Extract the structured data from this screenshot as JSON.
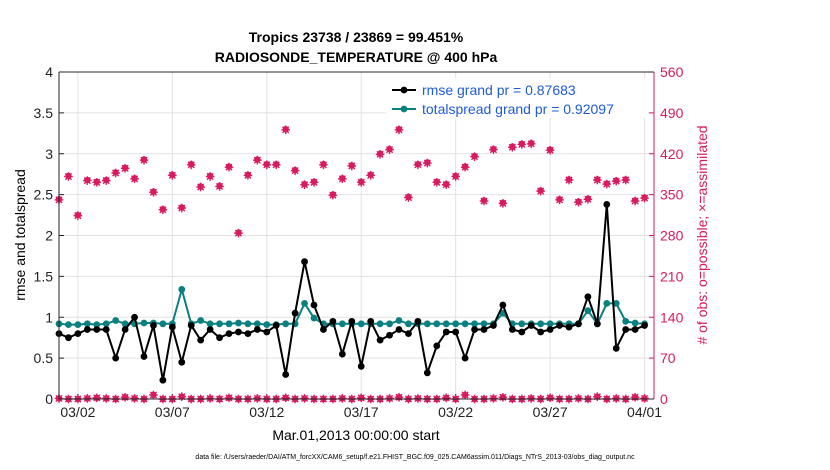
{
  "chart_data": {
    "type": "line",
    "title": "Tropics 23738 / 23869 = 99.451%",
    "subtitle": "RADIOSONDE_TEMPERATURE @ 400 hPa",
    "xlabel": "Mar.01,2013 00:00:00 start",
    "ylabel_left": "rmse and totalspread",
    "ylabel_right": "# of obs: o=possible; ×=assimilated",
    "footnote": "data file: /Users/raeder/DAI/ATM_forcXX/CAM6_setup/f.e21.FHIST_BGC.f09_025.CAM6assim.011/Diags_NTrS_2013-03/obs_diag_output.nc",
    "xlim": [
      0,
      31.5
    ],
    "ylim_left": [
      0,
      4
    ],
    "ylim_right": [
      0,
      560
    ],
    "x_tick_values": [
      1,
      6,
      11,
      16,
      21,
      26,
      31
    ],
    "x_tick_labels": [
      "03/02",
      "03/07",
      "03/12",
      "03/17",
      "03/22",
      "03/27",
      "04/01"
    ],
    "y_left_ticks": [
      "0",
      "0.5",
      "1",
      "1.5",
      "2",
      "2.5",
      "3",
      "3.5",
      "4"
    ],
    "y_right_ticks": [
      "0",
      "70",
      "140",
      "210",
      "280",
      "350",
      "420",
      "490",
      "560"
    ],
    "legend_location": "top-right",
    "colors": {
      "rmse": "#000000",
      "spread": "#0a8080",
      "obs": "#d81b60",
      "legend_text": "#1f5bd6",
      "axis": "#262626"
    },
    "series": [
      {
        "name": "rmse grand pr = 0.87683",
        "x": [
          0,
          0.5,
          1,
          1.5,
          2,
          2.5,
          3,
          3.5,
          4,
          4.5,
          5,
          5.5,
          6,
          6.5,
          7,
          7.5,
          8,
          8.5,
          9,
          9.5,
          10,
          10.5,
          11,
          11.5,
          12,
          12.5,
          13,
          13.5,
          14,
          14.5,
          15,
          15.5,
          16,
          16.5,
          17,
          17.5,
          18,
          18.5,
          19,
          19.5,
          20,
          20.5,
          21,
          21.5,
          22,
          22.5,
          23,
          23.5,
          24,
          24.5,
          25,
          25.5,
          26,
          26.5,
          27,
          27.5,
          28,
          28.5,
          29,
          29.5,
          30,
          30.5,
          31
        ],
        "values": [
          0.8,
          0.75,
          0.8,
          0.85,
          0.85,
          0.85,
          0.5,
          0.85,
          1.0,
          0.52,
          0.9,
          0.23,
          0.88,
          0.45,
          0.9,
          0.72,
          0.85,
          0.75,
          0.8,
          0.82,
          0.8,
          0.85,
          0.82,
          0.9,
          0.3,
          1.05,
          1.68,
          1.15,
          0.85,
          0.95,
          0.55,
          0.95,
          0.4,
          0.95,
          0.72,
          0.78,
          0.85,
          0.8,
          0.95,
          0.32,
          0.65,
          0.82,
          0.82,
          0.5,
          0.85,
          0.85,
          0.9,
          1.15,
          0.85,
          0.82,
          0.9,
          0.82,
          0.85,
          0.9,
          0.88,
          0.92,
          1.25,
          0.92,
          2.38,
          0.62,
          0.85,
          0.85,
          0.9
        ]
      },
      {
        "name": "totalspread grand pr = 0.92097",
        "x": [
          0,
          0.5,
          1,
          1.5,
          2,
          2.5,
          3,
          3.5,
          4,
          4.5,
          5,
          5.5,
          6,
          6.5,
          7,
          7.5,
          8,
          8.5,
          9,
          9.5,
          10,
          10.5,
          11,
          11.5,
          12,
          12.5,
          13,
          13.5,
          14,
          14.5,
          15,
          15.5,
          16,
          16.5,
          17,
          17.5,
          18,
          18.5,
          19,
          19.5,
          20,
          20.5,
          21,
          21.5,
          22,
          22.5,
          23,
          23.5,
          24,
          24.5,
          25,
          25.5,
          26,
          26.5,
          27,
          27.5,
          28,
          28.5,
          29,
          29.5,
          30,
          30.5,
          31
        ],
        "values": [
          0.92,
          0.91,
          0.91,
          0.92,
          0.91,
          0.92,
          0.96,
          0.92,
          0.92,
          0.93,
          0.93,
          0.92,
          0.92,
          1.34,
          0.92,
          0.96,
          0.92,
          0.92,
          0.92,
          0.93,
          0.92,
          0.92,
          0.91,
          0.91,
          0.92,
          0.92,
          1.17,
          0.99,
          0.92,
          0.92,
          0.92,
          0.92,
          0.92,
          0.92,
          0.92,
          0.92,
          0.96,
          0.92,
          0.92,
          0.92,
          0.92,
          0.92,
          0.92,
          0.92,
          0.92,
          0.92,
          0.92,
          1.05,
          0.92,
          0.92,
          0.92,
          0.92,
          0.92,
          0.92,
          0.92,
          0.92,
          1.08,
          0.92,
          1.17,
          1.17,
          0.95,
          0.93,
          0.92
        ]
      },
      {
        "name": "obs possible",
        "x": [
          0,
          0.5,
          1,
          1.5,
          2,
          2.5,
          3,
          3.5,
          4,
          4.5,
          5,
          5.5,
          6,
          6.5,
          7,
          7.5,
          8,
          8.5,
          9,
          9.5,
          10,
          10.5,
          11,
          11.5,
          12,
          12.5,
          13,
          13.5,
          14,
          14.5,
          15,
          15.5,
          16,
          16.5,
          17,
          17.5,
          18,
          18.5,
          19,
          19.5,
          20,
          20.5,
          21,
          21.5,
          22,
          22.5,
          23,
          23.5,
          24,
          24.5,
          25,
          25.5,
          26,
          26.5,
          27,
          27.5,
          28,
          28.5,
          29,
          29.5,
          30,
          30.5,
          31
        ],
        "values": [
          342,
          382,
          315,
          375,
          372,
          375,
          388,
          396,
          378,
          410,
          355,
          325,
          384,
          328,
          402,
          364,
          382,
          365,
          398,
          285,
          384,
          410,
          402,
          402,
          462,
          392,
          368,
          372,
          402,
          350,
          378,
          400,
          372,
          384,
          420,
          428,
          462,
          346,
          402,
          405,
          372,
          368,
          382,
          398,
          416,
          340,
          428,
          336,
          432,
          437,
          438,
          357,
          427,
          342,
          376,
          338,
          343,
          376,
          369,
          374,
          376,
          340,
          345
        ]
      },
      {
        "name": "obs assimilated",
        "x": [
          0,
          0.5,
          1,
          1.5,
          2,
          2.5,
          3,
          3.5,
          4,
          4.5,
          5,
          5.5,
          6,
          6.5,
          7,
          7.5,
          8,
          8.5,
          9,
          9.5,
          10,
          10.5,
          11,
          11.5,
          12,
          12.5,
          13,
          13.5,
          14,
          14.5,
          15,
          15.5,
          16,
          16.5,
          17,
          17.5,
          18,
          18.5,
          19,
          19.5,
          20,
          20.5,
          21,
          21.5,
          22,
          22.5,
          23,
          23.5,
          24,
          24.5,
          25,
          25.5,
          26,
          26.5,
          27,
          27.5,
          28,
          28.5,
          29,
          29.5,
          30,
          30.5,
          31
        ],
        "values": [
          341,
          381,
          314,
          374,
          371,
          374,
          387,
          395,
          377,
          409,
          354,
          324,
          383,
          327,
          401,
          363,
          381,
          364,
          397,
          284,
          383,
          409,
          401,
          401,
          461,
          391,
          367,
          371,
          401,
          349,
          377,
          399,
          371,
          383,
          419,
          427,
          461,
          345,
          401,
          404,
          371,
          367,
          381,
          397,
          415,
          339,
          427,
          335,
          431,
          436,
          437,
          356,
          426,
          341,
          375,
          337,
          342,
          375,
          368,
          373,
          375,
          339,
          344
        ]
      },
      {
        "name": "obs rejected",
        "x": [
          0,
          0.5,
          1,
          1.5,
          2,
          2.5,
          3,
          3.5,
          4,
          4.5,
          5,
          5.5,
          6,
          6.5,
          7,
          7.5,
          8,
          8.5,
          9,
          9.5,
          10,
          10.5,
          11,
          11.5,
          12,
          12.5,
          13,
          13.5,
          14,
          14.5,
          15,
          15.5,
          16,
          16.5,
          17,
          17.5,
          18,
          18.5,
          19,
          19.5,
          20,
          20.5,
          21,
          21.5,
          22,
          22.5,
          23,
          23.5,
          24,
          24.5,
          25,
          25.5,
          26,
          26.5,
          27,
          27.5,
          28,
          28.5,
          29,
          29.5,
          30,
          30.5,
          31
        ],
        "values": [
          1,
          0,
          0,
          1,
          2,
          1,
          0,
          3,
          1,
          0,
          7,
          0,
          0,
          4,
          0,
          0,
          1,
          0,
          2,
          0,
          0,
          1,
          0,
          0,
          2,
          0,
          1,
          0,
          0,
          0,
          1,
          0,
          2,
          0,
          0,
          1,
          3,
          0,
          1,
          0,
          0,
          2,
          0,
          7,
          0,
          0,
          1,
          3,
          0,
          0,
          1,
          0,
          2,
          0,
          0,
          1,
          0,
          4,
          0,
          1,
          0,
          3,
          1
        ]
      }
    ]
  }
}
